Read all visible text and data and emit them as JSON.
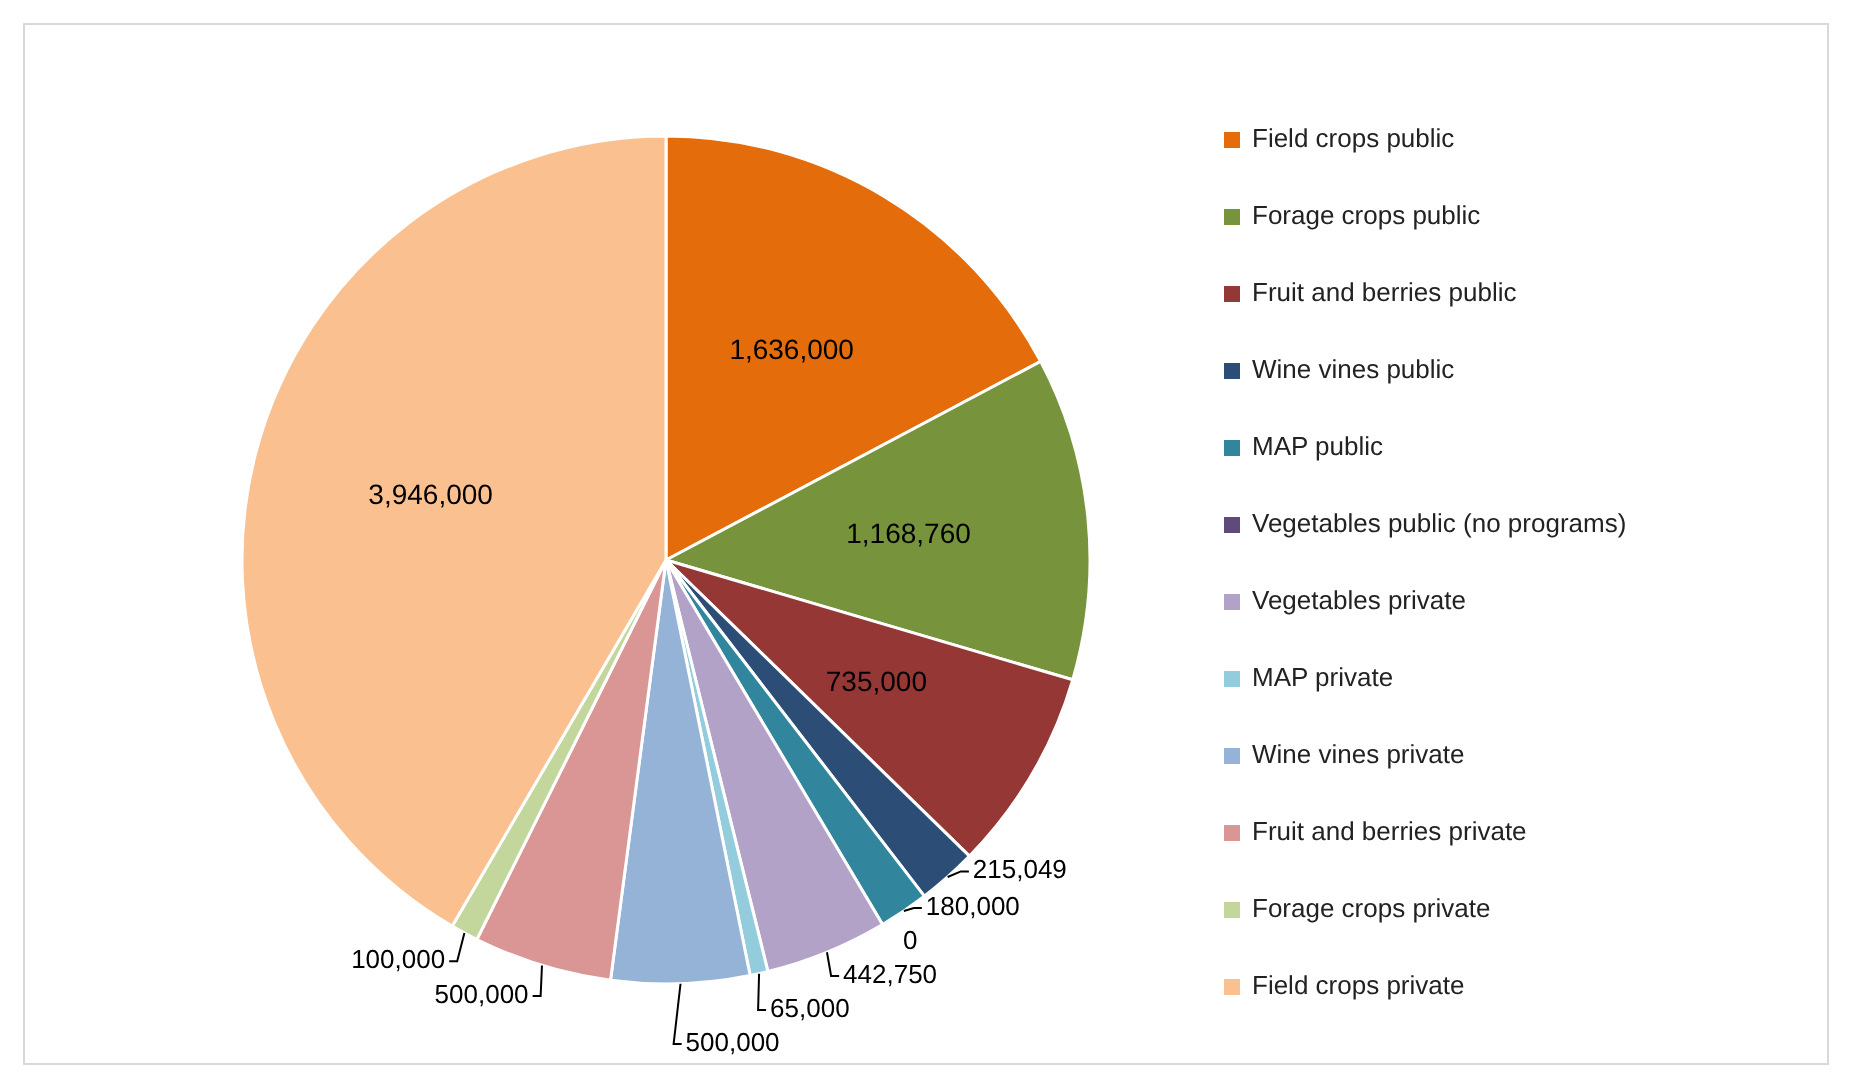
{
  "chart_data": {
    "type": "pie",
    "categories": [
      "Field crops public",
      "Forage crops public",
      "Fruit and berries public",
      "Wine vines public",
      "MAP public",
      "Vegetables public (no programs)",
      "Vegetables private",
      "MAP private",
      "Wine vines private",
      "Fruit and berries private",
      "Forage crops private",
      "Field crops private"
    ],
    "values": [
      1636000,
      1168760,
      735000,
      215049,
      180000,
      0,
      442750,
      65000,
      500000,
      500000,
      100000,
      3946000
    ],
    "colors": [
      "#e46c0a",
      "#77933c",
      "#953735",
      "#2c4d75",
      "#31859c",
      "#604a7b",
      "#b3a2c7",
      "#93cddd",
      "#95b3d7",
      "#d99694",
      "#c3d69b",
      "#fac090"
    ],
    "value_labels": [
      "1,636,000",
      "1,168,760",
      "735,000",
      "215,049",
      "180,000",
      "0",
      "442,750",
      "65,000",
      "500,000",
      "500,000",
      "100,000",
      "3,946,000"
    ],
    "legend": "right"
  }
}
